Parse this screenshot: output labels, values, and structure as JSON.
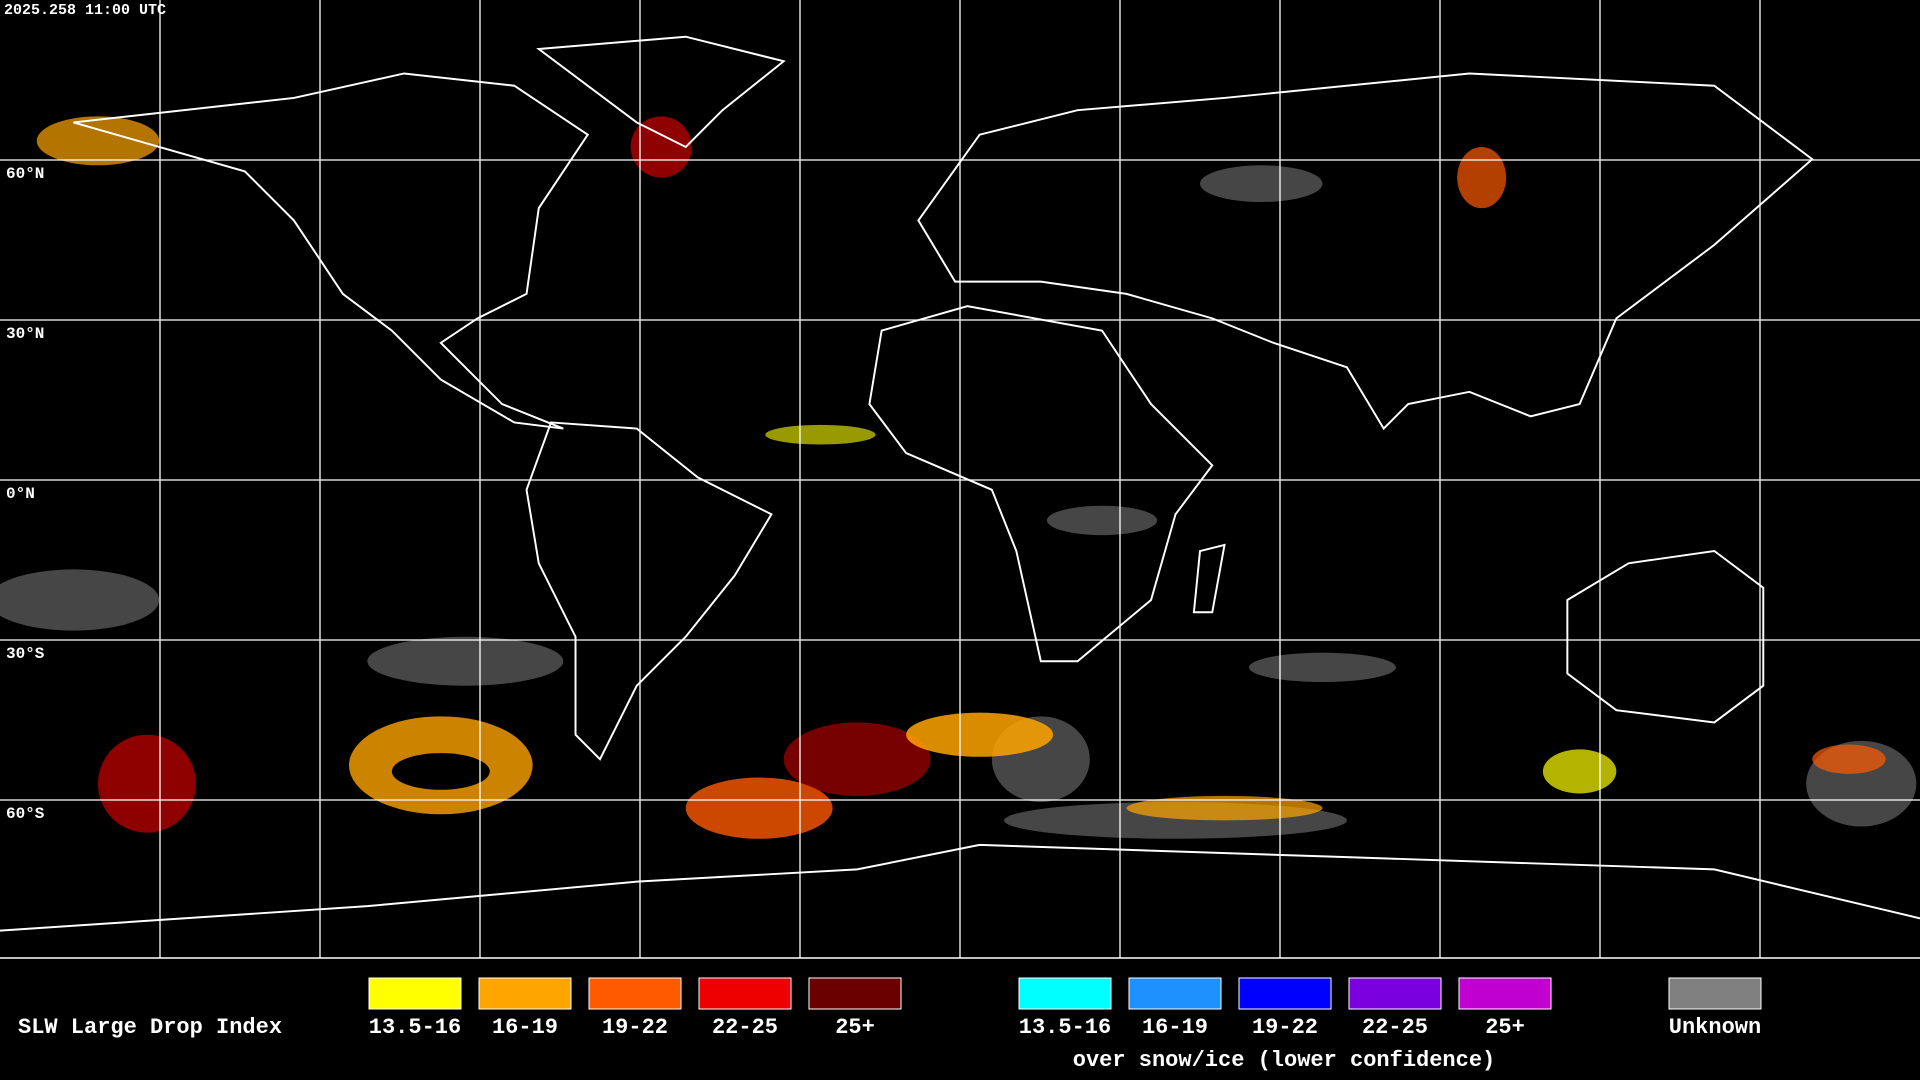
{
  "header": {
    "timestamp": "2025.258 11:00 UTC"
  },
  "map": {
    "lat_labels": [
      "60°N",
      "30°N",
      "0°N",
      "30°S",
      "60°S"
    ]
  },
  "legend": {
    "title": "SLW Large Drop Index",
    "groups": [
      {
        "items": [
          {
            "label": "13.5-16",
            "color": "#ffff00"
          },
          {
            "label": "16-19",
            "color": "#ffa500"
          },
          {
            "label": "19-22",
            "color": "#ff5a00"
          },
          {
            "label": "22-25",
            "color": "#ee0000"
          },
          {
            "label": "25+",
            "color": "#6b0000"
          }
        ]
      },
      {
        "items": [
          {
            "label": "13.5-16",
            "color": "#00ffff"
          },
          {
            "label": "16-19",
            "color": "#1e90ff"
          },
          {
            "label": "19-22",
            "color": "#0000ff"
          },
          {
            "label": "22-25",
            "color": "#7a00e0"
          },
          {
            "label": "25+",
            "color": "#c000d0"
          }
        ],
        "note": "over snow/ice (lower confidence)"
      }
    ],
    "unknown": {
      "label": "Unknown",
      "color": "#808080"
    }
  }
}
